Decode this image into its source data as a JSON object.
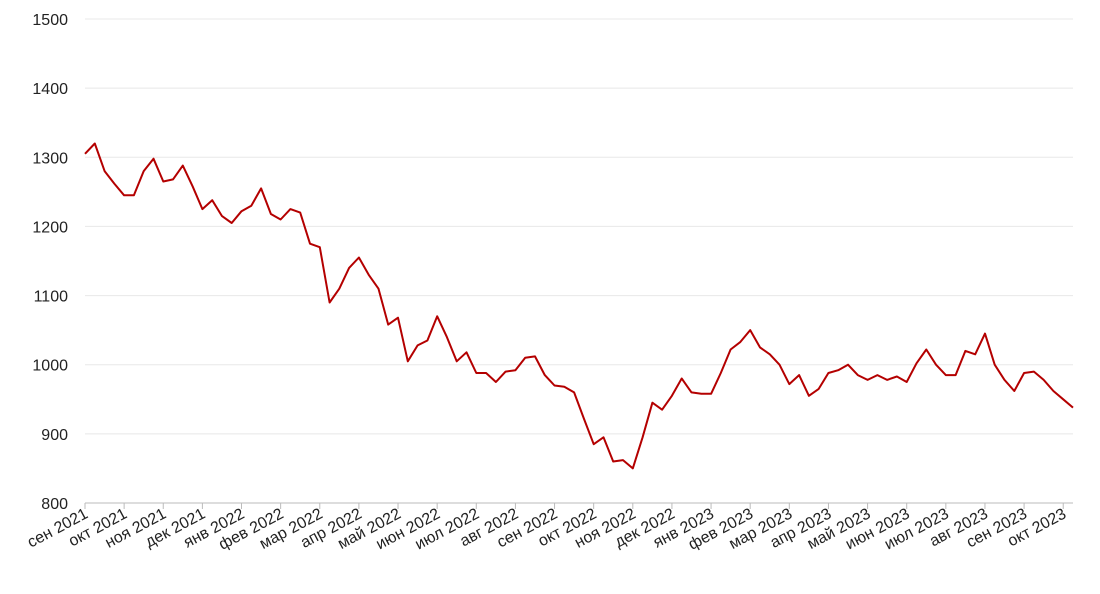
{
  "chart_data": {
    "type": "line",
    "categories": [
      "сен 2021",
      null,
      null,
      null,
      "окт 2021",
      null,
      null,
      null,
      "ноя 2021",
      null,
      null,
      null,
      "дек 2021",
      null,
      null,
      null,
      "янв 2022",
      null,
      null,
      null,
      "фев 2022",
      null,
      null,
      null,
      "мар 2022",
      null,
      null,
      null,
      "апр 2022",
      null,
      null,
      null,
      "май 2022",
      null,
      null,
      null,
      "июн 2022",
      null,
      null,
      null,
      "июл 2022",
      null,
      null,
      null,
      "авг 2022",
      null,
      null,
      null,
      "сен 2022",
      null,
      null,
      null,
      "окт 2022",
      null,
      null,
      null,
      "ноя 2022",
      null,
      null,
      null,
      "дек 2022",
      null,
      null,
      null,
      "янв 2023",
      null,
      null,
      null,
      "фев 2023",
      null,
      null,
      null,
      "мар 2023",
      null,
      null,
      null,
      "апр 2023",
      null,
      null,
      null,
      "май 2023",
      null,
      null,
      null,
      "июн 2023",
      null,
      null,
      null,
      "июл 2023",
      null,
      null,
      null,
      "авг 2023",
      null,
      null,
      null,
      "сен 2023",
      null,
      null,
      null,
      "окт 2023",
      null
    ],
    "values": [
      1305,
      1320,
      1280,
      1262,
      1245,
      1245,
      1280,
      1298,
      1265,
      1268,
      1288,
      1258,
      1225,
      1238,
      1215,
      1205,
      1222,
      1230,
      1255,
      1218,
      1210,
      1225,
      1220,
      1175,
      1170,
      1090,
      1110,
      1140,
      1155,
      1130,
      1110,
      1058,
      1068,
      1005,
      1028,
      1035,
      1070,
      1040,
      1005,
      1018,
      988,
      988,
      975,
      990,
      992,
      1010,
      1012,
      985,
      970,
      968,
      960,
      922,
      885,
      895,
      860,
      862,
      850,
      895,
      945,
      935,
      955,
      980,
      960,
      958,
      958,
      988,
      1022,
      1033,
      1050,
      1025,
      1015,
      1000,
      972,
      985,
      955,
      965,
      988,
      992,
      1000,
      985,
      978,
      985,
      978,
      983,
      975,
      1002,
      1022,
      1000,
      985,
      985,
      1020,
      1015,
      1045,
      1000,
      978,
      962,
      988,
      990,
      978,
      962,
      950,
      938
    ],
    "color": "#b40000",
    "ylim": [
      800,
      1500
    ],
    "yticks": [
      800,
      900,
      1000,
      1100,
      1200,
      1300,
      1400,
      1500
    ],
    "grid": true
  }
}
